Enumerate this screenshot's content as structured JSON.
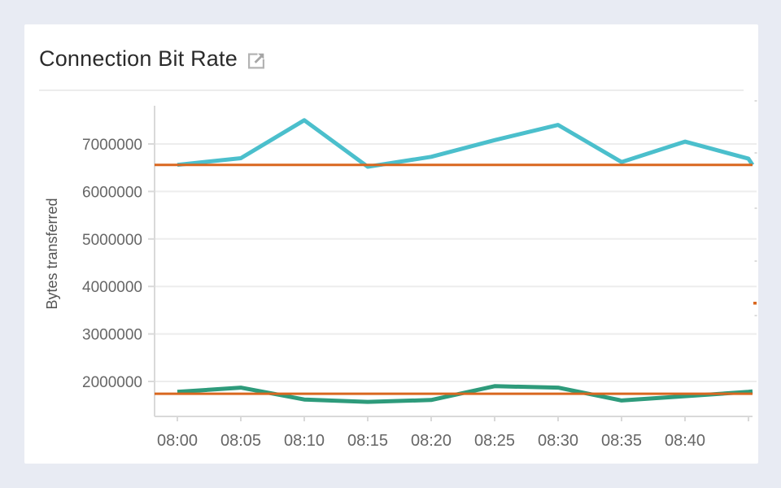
{
  "page": {
    "background_color": "#E8EBF3"
  },
  "panel": {
    "title": "Connection Bit Rate",
    "title_icon": "external-link-icon"
  },
  "chart_data": {
    "type": "line",
    "title": "Connection Bit Rate",
    "xlabel": "",
    "ylabel": "Bytes transferred",
    "x_tick_labels": [
      "08:00",
      "08:05",
      "08:10",
      "08:15",
      "08:20",
      "08:25",
      "08:30",
      "08:35",
      "08:40",
      ""
    ],
    "y_ticks": [
      2000000,
      3000000,
      4000000,
      5000000,
      6000000,
      7000000
    ],
    "ylim": [
      1260000,
      7800000
    ],
    "grid": "horizontal",
    "legend_position": "none",
    "series": [
      {
        "name": "teal-series",
        "color": "#4BBFCC",
        "values": [
          6560000,
          6700000,
          7500000,
          6520000,
          6730000,
          7080000,
          7400000,
          6620000,
          7050000,
          6690000
        ],
        "edge_value": 6560000
      },
      {
        "name": "green-series",
        "color": "#2E9B7B",
        "values": [
          1780000,
          1870000,
          1620000,
          1570000,
          1610000,
          1900000,
          1870000,
          1600000,
          1690000,
          1780000
        ],
        "edge_value": 1790000
      }
    ],
    "reference_lines": [
      {
        "name": "upper-threshold",
        "value": 6560000,
        "color": "#D9671F"
      },
      {
        "name": "lower-threshold",
        "value": 1740000,
        "color": "#D9671F"
      }
    ]
  }
}
